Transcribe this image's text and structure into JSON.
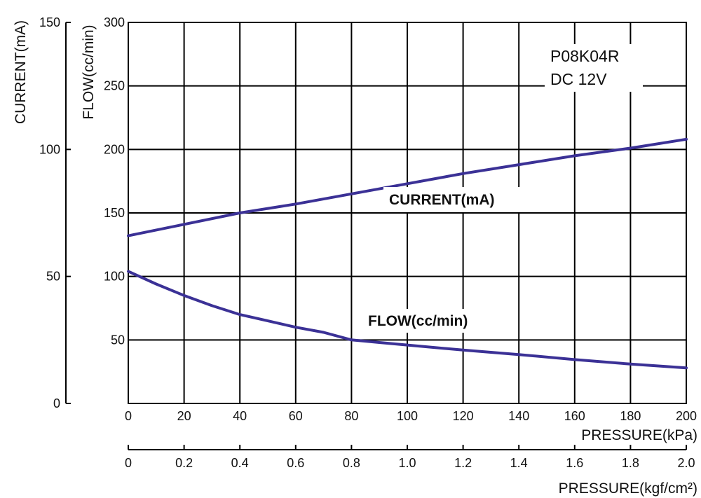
{
  "chart_data": {
    "type": "line",
    "model": "P08K04R",
    "voltage": "DC 12V",
    "x_kpa": {
      "label": "PRESSURE(kPa)",
      "ticks": [
        0,
        20,
        40,
        60,
        80,
        100,
        120,
        140,
        160,
        180,
        200
      ],
      "tick_labels": [
        "0",
        "20",
        "40",
        "60",
        "80",
        "100",
        "120",
        "140",
        "160",
        "180",
        "200"
      ],
      "range": [
        0,
        200
      ]
    },
    "x_kgf": {
      "label": "PRESSURE(kgf/cm²)",
      "tick_labels": [
        "0",
        "0.2",
        "0.4",
        "0.6",
        "0.8",
        "1.0",
        "1.2",
        "1.4",
        "1.6",
        "1.8",
        "2.0"
      ],
      "range": [
        0,
        2.0
      ]
    },
    "y_flow": {
      "label": "FLOW(cc/min)",
      "ticks": [
        0,
        50,
        100,
        150,
        200,
        250,
        300
      ],
      "tick_labels": [
        "",
        "50",
        "100",
        "150",
        "200",
        "250",
        "300"
      ],
      "range": [
        0,
        300
      ]
    },
    "y_current": {
      "label": "CURRENT(mA)",
      "ticks": [
        0,
        50,
        100,
        150
      ],
      "tick_labels": [
        "0",
        "50",
        "100",
        "150"
      ],
      "range": [
        0,
        150
      ]
    },
    "grid": true,
    "series": [
      {
        "name": "CURRENT(mA)",
        "axis": "current",
        "color": "#3b3196",
        "x": [
          0,
          20,
          40,
          60,
          80,
          100,
          120,
          140,
          160,
          180,
          200
        ],
        "y": [
          66,
          70.5,
          75,
          78.5,
          82.5,
          86.5,
          90.5,
          94,
          97.5,
          100.5,
          104
        ]
      },
      {
        "name": "FLOW(cc/min)",
        "axis": "flow",
        "color": "#3b3196",
        "x": [
          0,
          10,
          20,
          30,
          40,
          50,
          60,
          70,
          80,
          90,
          100,
          120,
          140,
          160,
          180,
          200
        ],
        "y": [
          104,
          94,
          85,
          77,
          70,
          65,
          60,
          56,
          50,
          48,
          46,
          42,
          38.5,
          34.5,
          31,
          28
        ]
      }
    ]
  }
}
